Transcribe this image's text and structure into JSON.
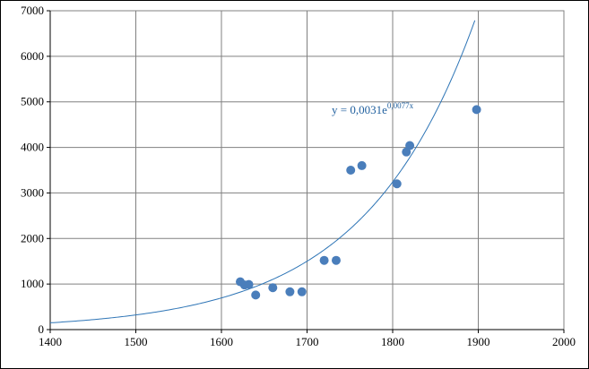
{
  "chart_data": {
    "type": "scatter",
    "title": "",
    "xlabel": "",
    "ylabel": "",
    "xlim": [
      1400,
      2000
    ],
    "ylim": [
      0,
      7000
    ],
    "x_ticks": [
      1400,
      1500,
      1600,
      1700,
      1800,
      1900,
      2000
    ],
    "y_ticks": [
      0,
      1000,
      2000,
      3000,
      4000,
      5000,
      6000,
      7000
    ],
    "grid": true,
    "legend": "none",
    "series": [
      {
        "color": "#4a7ebb",
        "points": [
          {
            "x": 1622,
            "y": 1050
          },
          {
            "x": 1627,
            "y": 980
          },
          {
            "x": 1632,
            "y": 990
          },
          {
            "x": 1640,
            "y": 760
          },
          {
            "x": 1660,
            "y": 920
          },
          {
            "x": 1680,
            "y": 830
          },
          {
            "x": 1694,
            "y": 830
          },
          {
            "x": 1720,
            "y": 1520
          },
          {
            "x": 1734,
            "y": 1520
          },
          {
            "x": 1751,
            "y": 3500
          },
          {
            "x": 1764,
            "y": 3600
          },
          {
            "x": 1805,
            "y": 3200
          },
          {
            "x": 1816,
            "y": 3900
          },
          {
            "x": 1820,
            "y": 4040
          },
          {
            "x": 1898,
            "y": 4830
          }
        ]
      }
    ],
    "trendline": {
      "type": "exponential",
      "color": "#2e75b6",
      "a": 0.0031,
      "b": 0.0077,
      "x_range": [
        1400,
        1897
      ],
      "label_main": "y = 0,0031e",
      "label_exp": "0,0077x"
    }
  }
}
